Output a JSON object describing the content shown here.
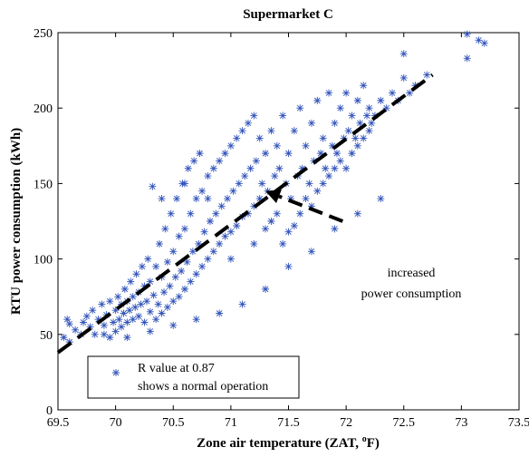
{
  "chart_data": {
    "type": "scatter",
    "title": "Supermarket C",
    "xlabel": "Zone air temperature (ZAT, ",
    "xlabel_sup": "o",
    "xlabel_tail": "F)",
    "ylabel": "RTU power consumption (kWh)",
    "xlim": [
      69.5,
      73.5
    ],
    "ylim": [
      0,
      250
    ],
    "xticks": [
      69.5,
      70,
      70.5,
      71,
      71.5,
      72,
      72.5,
      73,
      73.5
    ],
    "xtick_labels": [
      "69.5",
      "70",
      "70.5",
      "71",
      "71.5",
      "72",
      "72.5",
      "73",
      "73.5"
    ],
    "yticks": [
      0,
      50,
      100,
      150,
      200,
      250
    ],
    "ytick_labels": [
      "0",
      "50",
      "100",
      "150",
      "200",
      "250"
    ],
    "grid": false,
    "legend": {
      "placement": "bottom-left",
      "lines": [
        "R value at 0.87",
        "shows a normal operation"
      ]
    },
    "fit_line": {
      "x": [
        69.5,
        72.75
      ],
      "y": [
        38,
        222
      ]
    },
    "annotation": {
      "lines": [
        "increased",
        "power consumption"
      ],
      "arrow_tail": [
        71.97,
        125
      ],
      "arrow_head": [
        71.3,
        145
      ]
    },
    "series": [
      {
        "values": [
          [
            69.55,
            48
          ],
          [
            69.6,
            57
          ],
          [
            69.58,
            60
          ],
          [
            69.65,
            53
          ],
          [
            69.7,
            50
          ],
          [
            69.72,
            58
          ],
          [
            69.75,
            62
          ],
          [
            69.78,
            55
          ],
          [
            69.8,
            66
          ],
          [
            69.82,
            50
          ],
          [
            69.85,
            60
          ],
          [
            69.88,
            70
          ],
          [
            69.9,
            56
          ],
          [
            69.92,
            63
          ],
          [
            69.95,
            48
          ],
          [
            69.95,
            72
          ],
          [
            69.98,
            58
          ],
          [
            70.0,
            52
          ],
          [
            70.0,
            66
          ],
          [
            70.02,
            75
          ],
          [
            70.03,
            60
          ],
          [
            70.05,
            55
          ],
          [
            70.05,
            70
          ],
          [
            70.07,
            64
          ],
          [
            70.08,
            80
          ],
          [
            70.1,
            58
          ],
          [
            70.1,
            72
          ],
          [
            70.12,
            66
          ],
          [
            70.13,
            85
          ],
          [
            70.15,
            60
          ],
          [
            70.15,
            75
          ],
          [
            70.17,
            68
          ],
          [
            70.18,
            90
          ],
          [
            70.2,
            62
          ],
          [
            70.2,
            78
          ],
          [
            70.22,
            70
          ],
          [
            70.23,
            95
          ],
          [
            70.25,
            58
          ],
          [
            70.25,
            82
          ],
          [
            70.27,
            72
          ],
          [
            70.28,
            100
          ],
          [
            70.3,
            65
          ],
          [
            70.3,
            85
          ],
          [
            70.32,
            148
          ],
          [
            70.33,
            76
          ],
          [
            70.35,
            60
          ],
          [
            70.35,
            95
          ],
          [
            70.37,
            70
          ],
          [
            70.38,
            110
          ],
          [
            70.4,
            64
          ],
          [
            70.4,
            88
          ],
          [
            70.42,
            78
          ],
          [
            70.43,
            120
          ],
          [
            70.45,
            68
          ],
          [
            70.45,
            98
          ],
          [
            70.47,
            82
          ],
          [
            70.48,
            130
          ],
          [
            70.5,
            72
          ],
          [
            70.5,
            105
          ],
          [
            70.52,
            88
          ],
          [
            70.53,
            140
          ],
          [
            70.55,
            75
          ],
          [
            70.55,
            115
          ],
          [
            70.57,
            92
          ],
          [
            70.58,
            150
          ],
          [
            70.6,
            80
          ],
          [
            70.6,
            120
          ],
          [
            70.62,
            98
          ],
          [
            70.63,
            160
          ],
          [
            70.65,
            85
          ],
          [
            70.65,
            130
          ],
          [
            70.67,
            105
          ],
          [
            70.68,
            165
          ],
          [
            70.7,
            90
          ],
          [
            70.7,
            140
          ],
          [
            70.72,
            110
          ],
          [
            70.73,
            170
          ],
          [
            70.75,
            95
          ],
          [
            70.75,
            145
          ],
          [
            70.77,
            118
          ],
          [
            70.8,
            100
          ],
          [
            70.8,
            155
          ],
          [
            70.82,
            125
          ],
          [
            70.85,
            105
          ],
          [
            70.85,
            160
          ],
          [
            70.87,
            130
          ],
          [
            70.9,
            110
          ],
          [
            70.9,
            165
          ],
          [
            70.92,
            135
          ],
          [
            70.95,
            115
          ],
          [
            70.95,
            170
          ],
          [
            70.97,
            140
          ],
          [
            71.0,
            118
          ],
          [
            71.0,
            175
          ],
          [
            71.02,
            145
          ],
          [
            71.05,
            122
          ],
          [
            71.05,
            180
          ],
          [
            71.07,
            150
          ],
          [
            71.1,
            128
          ],
          [
            71.1,
            185
          ],
          [
            71.12,
            155
          ],
          [
            71.15,
            130
          ],
          [
            71.15,
            190
          ],
          [
            71.17,
            160
          ],
          [
            71.2,
            135
          ],
          [
            71.2,
            195
          ],
          [
            71.22,
            165
          ],
          [
            71.25,
            140
          ],
          [
            71.25,
            180
          ],
          [
            71.27,
            150
          ],
          [
            71.3,
            120
          ],
          [
            71.3,
            170
          ],
          [
            71.32,
            145
          ],
          [
            71.35,
            125
          ],
          [
            71.35,
            185
          ],
          [
            71.38,
            155
          ],
          [
            71.4,
            130
          ],
          [
            71.4,
            175
          ],
          [
            71.42,
            160
          ],
          [
            71.45,
            110
          ],
          [
            71.45,
            195
          ],
          [
            71.48,
            150
          ],
          [
            71.5,
            118
          ],
          [
            71.5,
            170
          ],
          [
            71.52,
            140
          ],
          [
            71.55,
            122
          ],
          [
            71.55,
            185
          ],
          [
            71.58,
            155
          ],
          [
            71.6,
            130
          ],
          [
            71.6,
            200
          ],
          [
            71.62,
            160
          ],
          [
            71.65,
            140
          ],
          [
            71.65,
            175
          ],
          [
            71.68,
            150
          ],
          [
            71.7,
            135
          ],
          [
            71.7,
            190
          ],
          [
            71.72,
            165
          ],
          [
            71.75,
            145
          ],
          [
            71.75,
            205
          ],
          [
            71.78,
            170
          ],
          [
            71.8,
            150
          ],
          [
            71.8,
            180
          ],
          [
            71.82,
            160
          ],
          [
            71.85,
            155
          ],
          [
            71.85,
            210
          ],
          [
            71.88,
            175
          ],
          [
            71.9,
            160
          ],
          [
            71.9,
            190
          ],
          [
            71.92,
            170
          ],
          [
            71.95,
            165
          ],
          [
            71.95,
            200
          ],
          [
            71.98,
            180
          ],
          [
            72.0,
            160
          ],
          [
            72.0,
            210
          ],
          [
            72.02,
            185
          ],
          [
            72.05,
            170
          ],
          [
            72.05,
            195
          ],
          [
            72.08,
            180
          ],
          [
            72.1,
            175
          ],
          [
            72.1,
            205
          ],
          [
            72.12,
            190
          ],
          [
            72.15,
            180
          ],
          [
            72.15,
            215
          ],
          [
            72.18,
            195
          ],
          [
            72.2,
            185
          ],
          [
            72.2,
            200
          ],
          [
            72.22,
            190
          ],
          [
            72.25,
            195
          ],
          [
            72.3,
            205
          ],
          [
            72.35,
            200
          ],
          [
            72.4,
            210
          ],
          [
            72.45,
            205
          ],
          [
            72.5,
            220
          ],
          [
            72.55,
            210
          ],
          [
            72.6,
            215
          ],
          [
            72.7,
            222
          ],
          [
            72.5,
            236
          ],
          [
            73.05,
            233
          ],
          [
            73.05,
            249
          ],
          [
            73.15,
            245
          ],
          [
            73.2,
            243
          ],
          [
            69.6,
            45
          ],
          [
            69.9,
            50
          ],
          [
            70.1,
            48
          ],
          [
            70.3,
            52
          ],
          [
            70.5,
            56
          ],
          [
            70.7,
            60
          ],
          [
            70.9,
            64
          ],
          [
            71.1,
            70
          ],
          [
            71.3,
            80
          ],
          [
            71.5,
            95
          ],
          [
            71.7,
            105
          ],
          [
            71.9,
            120
          ],
          [
            72.1,
            130
          ],
          [
            72.3,
            140
          ],
          [
            70.4,
            140
          ],
          [
            70.6,
            150
          ],
          [
            70.8,
            140
          ],
          [
            71.0,
            100
          ],
          [
            71.2,
            110
          ]
        ]
      }
    ]
  }
}
